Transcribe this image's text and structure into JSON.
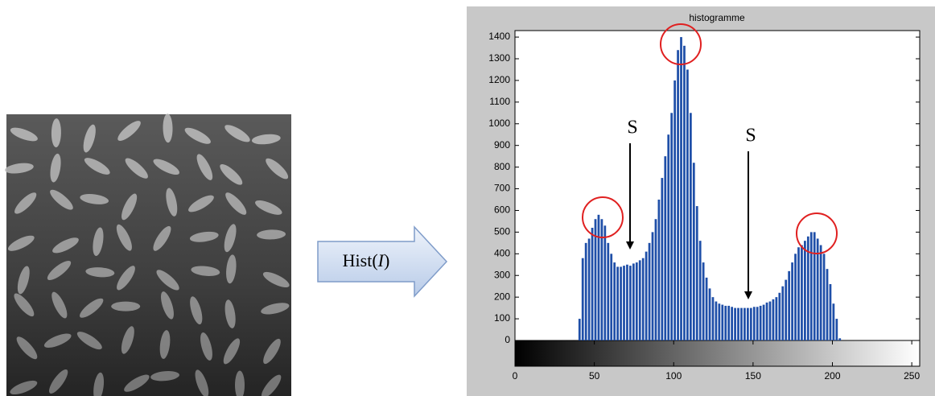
{
  "operator": {
    "text": "Hist(",
    "variable": "I",
    "close": ")"
  },
  "chart_data": {
    "type": "histogram",
    "title": "histogramme",
    "color": "#1f4fa8",
    "bins": [
      40,
      42,
      44,
      46,
      48,
      50,
      52,
      54,
      56,
      58,
      60,
      62,
      64,
      66,
      68,
      70,
      72,
      74,
      76,
      78,
      80,
      82,
      84,
      86,
      88,
      90,
      92,
      94,
      96,
      98,
      100,
      102,
      104,
      106,
      108,
      110,
      112,
      114,
      116,
      118,
      120,
      122,
      124,
      126,
      128,
      130,
      132,
      134,
      136,
      138,
      140,
      142,
      144,
      146,
      148,
      150,
      152,
      154,
      156,
      158,
      160,
      162,
      164,
      166,
      168,
      170,
      172,
      174,
      176,
      178,
      180,
      182,
      184,
      186,
      188,
      190,
      192,
      194,
      196,
      198,
      200,
      202,
      204,
      206
    ],
    "values": [
      100,
      380,
      450,
      470,
      520,
      560,
      580,
      560,
      530,
      450,
      400,
      360,
      340,
      340,
      345,
      350,
      345,
      355,
      360,
      370,
      380,
      410,
      450,
      500,
      560,
      650,
      750,
      850,
      950,
      1050,
      1200,
      1340,
      1400,
      1360,
      1250,
      1050,
      820,
      620,
      460,
      360,
      290,
      240,
      200,
      180,
      170,
      165,
      160,
      160,
      155,
      150,
      150,
      150,
      150,
      150,
      150,
      155,
      155,
      160,
      165,
      175,
      180,
      190,
      200,
      220,
      250,
      280,
      320,
      360,
      400,
      430,
      440,
      460,
      480,
      500,
      500,
      470,
      440,
      400,
      330,
      260,
      170,
      100,
      10
    ],
    "xlim": [
      0,
      255
    ],
    "ylim": [
      0,
      1430
    ],
    "xticks": [
      0,
      50,
      100,
      150,
      200,
      250
    ],
    "yticks": [
      0,
      100,
      200,
      300,
      400,
      500,
      600,
      700,
      800,
      900,
      1000,
      1100,
      1200,
      1300,
      1400
    ],
    "annotations": [
      "S",
      "S"
    ]
  }
}
